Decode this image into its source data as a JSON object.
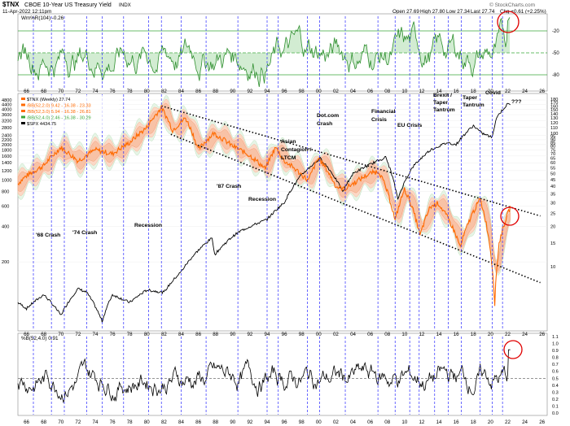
{
  "header": {
    "symbol": "$TNX",
    "name": "CBOE 10-Year US Treasury Yield",
    "exchange": "INDX",
    "datetime": "11-Apr-2022 12:11pm",
    "open": "Open 27.69",
    "high": "High 27.80",
    "low": "Low 27.34",
    "last": "Last 27.74",
    "chg": "Chg +0.61 (+2.25%)",
    "watermark": "© StockCharts.com"
  },
  "top_panel": {
    "legend": "Wm%R(104) -0.26",
    "right_ticks": [
      "-20",
      "-50",
      "-80"
    ]
  },
  "main_panel": {
    "legend": [
      {
        "text": "$TNX (Weekly) 27.74",
        "color": "#ff6a00"
      },
      {
        "text": "/BB(52,2.0) 9.42 - 16.38 - 23.33",
        "color": "#ff6a00"
      },
      {
        "text": "/BB(52,3.0) 5.94 - 16.38 - 26.81",
        "color": "#ff6a00"
      },
      {
        "text": "/BB(52,4.0) 2.46 - 16.38 - 30.29",
        "color": "#3aa63a"
      },
      {
        "text": "$SPX 4434.75",
        "color": "#000000"
      }
    ],
    "right_ticks": [
      "180",
      "170",
      "160",
      "150",
      "140",
      "130",
      "120",
      "110",
      "100",
      "95",
      "90",
      "85",
      "80",
      "75",
      "70",
      "65",
      "60",
      "55",
      "50",
      "45",
      "40",
      "35",
      "30",
      "25",
      "20",
      "15",
      "10"
    ],
    "left_ticks": [
      "4800",
      "4400",
      "4000",
      "3600",
      "3200",
      "2800",
      "2400",
      "2200",
      "2000",
      "1800",
      "1600",
      "1400",
      "1200",
      "1000",
      "800",
      "600",
      "400",
      "200"
    ],
    "annotations": [
      "'68 Crash",
      "'74 Crash",
      "Recession",
      "'87 Crash",
      "Recession",
      "Asian",
      "Contagion /",
      "LTCM",
      "Dot.com",
      "Crash",
      "Financial",
      "Crisis",
      "EU Crisis",
      "Brexit /",
      "Taper",
      "Tantrum",
      "Taper",
      "Tantrum",
      "Covid",
      "???"
    ]
  },
  "bottom_panel": {
    "legend": "%B(52,4.0) 0.91",
    "right_ticks": [
      "1.1",
      "1.0",
      "0.9",
      "0.8",
      "0.7",
      "0.6",
      "0.5",
      "0.4",
      "0.3",
      "0.2",
      "0.1",
      "0.0"
    ]
  },
  "x_axis": {
    "labels": [
      "66",
      "68",
      "70",
      "72",
      "74",
      "76",
      "78",
      "80",
      "82",
      "84",
      "86",
      "88",
      "90",
      "92",
      "94",
      "96",
      "98",
      "00",
      "02",
      "04",
      "06",
      "08",
      "10",
      "12",
      "14",
      "16",
      "18",
      "20",
      "22",
      "24",
      "26"
    ]
  },
  "colors": {
    "tnx": "#ff6a00",
    "band": "#f4a582",
    "band_outer": "#bfe3bf",
    "spx": "#000000",
    "willr": "#2f8f2f",
    "willr_fill": "#7fc97f",
    "vline": "#2a2aff",
    "circle": "#e00000",
    "trend": "#000000"
  },
  "chart_data": [
    {
      "type": "line",
      "title": "Wm%R(104)",
      "ylim": [
        -100,
        0
      ],
      "series": [
        {
          "name": "Wm%R(104)",
          "last": -0.26
        }
      ],
      "reference_lines": [
        -20,
        -50,
        -80
      ]
    },
    {
      "type": "line",
      "title": "$TNX (Weekly)",
      "x_range": [
        1965,
        2026
      ],
      "series": [
        {
          "name": "$TNX (Weekly)",
          "x": [
            1965,
            1966,
            1968,
            1970,
            1972,
            1974,
            1976,
            1978,
            1980,
            1981.7,
            1983,
            1984.5,
            1986,
            1987.8,
            1990,
            1992,
            1993.8,
            1995,
            1996,
            1998.8,
            2000,
            2002,
            2003,
            2006,
            2007,
            2008.9,
            2010,
            2011.8,
            2013,
            2013.9,
            2016.5,
            2018.8,
            2020.5,
            2021,
            2022.3
          ],
          "y": [
            42,
            48,
            57,
            78,
            62,
            75,
            70,
            85,
            110,
            155,
            105,
            130,
            75,
            100,
            80,
            68,
            54,
            78,
            62,
            44,
            65,
            40,
            38,
            50,
            52,
            22,
            38,
            17,
            28,
            30,
            14,
            32,
            5.3,
            15,
            27.74
          ]
        },
        {
          "name": "BB(52,2.0)",
          "upper": 23.33,
          "mid": 16.38,
          "lower": 9.42
        },
        {
          "name": "BB(52,3.0)",
          "upper": 26.81,
          "mid": 16.38,
          "lower": 5.94
        },
        {
          "name": "BB(52,4.0)",
          "upper": 30.29,
          "mid": 16.38,
          "lower": 2.46
        },
        {
          "name": "$SPX",
          "x": [
            1965,
            1966,
            1968,
            1970,
            1972,
            1973,
            1974.8,
            1976,
            1978,
            1980,
            1982,
            1984,
            1987.6,
            1987.9,
            1990,
            1991,
            1994,
            1996,
            1998,
            2000.2,
            2002.8,
            2004,
            2007.8,
            2009.2,
            2011,
            2013,
            2015,
            2016,
            2018,
            2019,
            2020.2,
            2020.7,
            2022
          ],
          "y": [
            90,
            80,
            105,
            70,
            118,
            110,
            62,
            105,
            90,
            115,
            110,
            165,
            320,
            230,
            330,
            370,
            460,
            640,
            1100,
            1520,
            790,
            1130,
            1560,
            680,
            1300,
            1800,
            2080,
            2000,
            2900,
            2500,
            2300,
            3400,
            4434.75
          ]
        }
      ],
      "trendlines": [
        "upper descending channel",
        "lower descending channel"
      ]
    },
    {
      "type": "line",
      "title": "%B(52,4.0)",
      "ylim": [
        0.0,
        1.1
      ],
      "series": [
        {
          "name": "%B(52,4.0)",
          "last": 0.91
        }
      ]
    }
  ]
}
